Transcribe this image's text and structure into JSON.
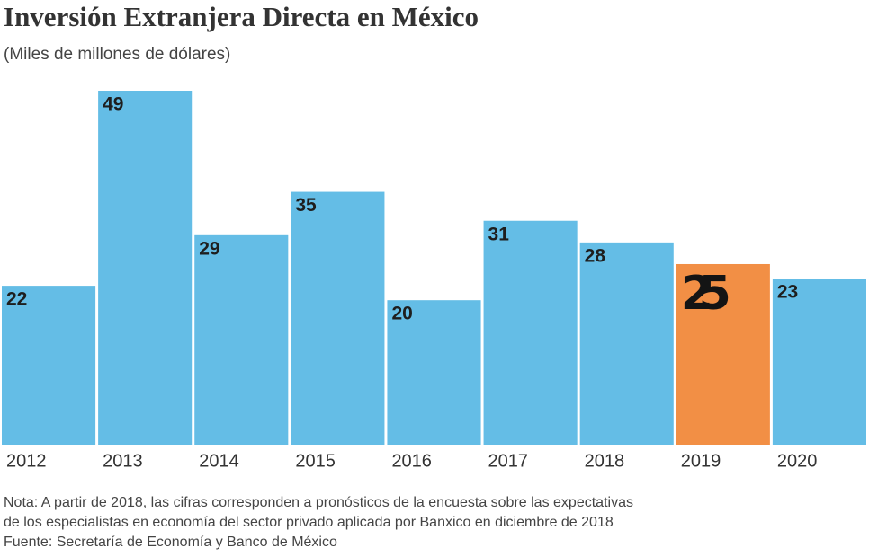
{
  "chart_data": {
    "type": "bar",
    "title": "Inversión Extranjera Directa en México",
    "subtitle": "(Miles de millones de dólares)",
    "categories": [
      "2012",
      "2013",
      "2014",
      "2015",
      "2016",
      "2017",
      "2018",
      "2019",
      "2020"
    ],
    "values": [
      22,
      49,
      29,
      35,
      20,
      31,
      28,
      25,
      23
    ],
    "colors": [
      "#64bde6",
      "#64bde6",
      "#64bde6",
      "#64bde6",
      "#64bde6",
      "#64bde6",
      "#64bde6",
      "#f28f45",
      "#64bde6"
    ],
    "notes": [
      "Nota: A partir de 2018, las cifras corresponden a pronósticos de la encuesta sobre las expectativas",
      "de los especialistas en economía del sector privado aplicada por Banxico en diciembre de 2018",
      "Fuente: Secretaría de Economía y Banco de México"
    ]
  }
}
